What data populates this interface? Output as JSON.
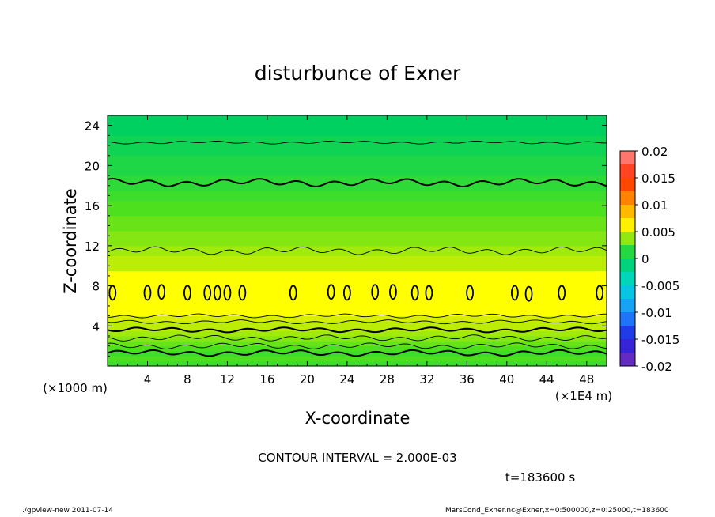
{
  "chart_data": {
    "type": "contour",
    "title": "disturbunce of Exner",
    "xlabel": "X-coordinate",
    "ylabel": "Z-coordinate",
    "x_unit_left": "(×1000 m)",
    "x_unit_right": "(×1E4 m)",
    "xlim": [
      0,
      50
    ],
    "ylim": [
      0,
      25
    ],
    "x_ticks": [
      4,
      8,
      12,
      16,
      20,
      24,
      28,
      32,
      36,
      40,
      44,
      48
    ],
    "y_ticks": [
      4,
      8,
      12,
      16,
      20,
      24
    ],
    "contour_interval_label": "CONTOUR INTERVAL = 2.000E-03",
    "time_label": "t=183600 s",
    "colorbar": {
      "ticks": [
        "0.02",
        "0.015",
        "0.01",
        "0.005",
        "0",
        "-0.005",
        "-0.01",
        "-0.015",
        "-0.02"
      ],
      "range": [
        -0.02,
        0.02
      ]
    },
    "bands": [
      {
        "z0": 0.0,
        "z1": 0.5,
        "value": 0.002
      },
      {
        "z0": 0.5,
        "z1": 1.0,
        "value": 0.0025
      },
      {
        "z0": 1.0,
        "z1": 1.5,
        "value": 0.002
      },
      {
        "z0": 1.5,
        "z1": 2.0,
        "value": 0.0025
      },
      {
        "z0": 2.0,
        "z1": 2.5,
        "value": 0.003
      },
      {
        "z0": 2.5,
        "z1": 3.0,
        "value": 0.0035
      },
      {
        "z0": 3.0,
        "z1": 3.5,
        "value": 0.004
      },
      {
        "z0": 3.5,
        "z1": 4.0,
        "value": 0.0045
      },
      {
        "z0": 4.0,
        "z1": 4.5,
        "value": 0.0045
      },
      {
        "z0": 4.5,
        "z1": 5.0,
        "value": 0.005
      },
      {
        "z0": 5.0,
        "z1": 9.5,
        "value": 0.0055
      },
      {
        "z0": 9.5,
        "z1": 11.0,
        "value": 0.0045
      },
      {
        "z0": 11.0,
        "z1": 12.0,
        "value": 0.004
      },
      {
        "z0": 12.0,
        "z1": 13.5,
        "value": 0.0035
      },
      {
        "z0": 13.5,
        "z1": 15.0,
        "value": 0.003
      },
      {
        "z0": 15.0,
        "z1": 16.5,
        "value": 0.0025
      },
      {
        "z0": 16.5,
        "z1": 17.5,
        "value": 0.002
      },
      {
        "z0": 17.5,
        "z1": 19.0,
        "value": 0.0015
      },
      {
        "z0": 19.0,
        "z1": 21.0,
        "value": 0.001
      },
      {
        "z0": 21.0,
        "z1": 23.0,
        "value": 0.0005
      },
      {
        "z0": 23.0,
        "z1": 25.0,
        "value": 0.0
      }
    ],
    "contour_lines": [
      {
        "z": 1.3,
        "level": 0.002,
        "weight": "thick",
        "wave": 0.3
      },
      {
        "z": 2.0,
        "level": 0.003,
        "weight": "thin",
        "wave": 0.3
      },
      {
        "z": 2.8,
        "level": 0.003,
        "weight": "thin",
        "wave": 0.3
      },
      {
        "z": 3.6,
        "level": 0.004,
        "weight": "thick",
        "wave": 0.25
      },
      {
        "z": 4.4,
        "level": 0.004,
        "weight": "thin",
        "wave": 0.2
      },
      {
        "z": 5.0,
        "level": 0.005,
        "weight": "thin",
        "wave": 0.2
      },
      {
        "z": 11.5,
        "level": 0.004,
        "weight": "thin",
        "wave": 0.4
      },
      {
        "z": 18.3,
        "level": 0.002,
        "weight": "thick",
        "wave": 0.4
      },
      {
        "z": 22.3,
        "level": 0.0,
        "weight": "thin",
        "wave": 0.15
      }
    ],
    "closed_contours": [
      {
        "x": 0.5,
        "z": 7.3
      },
      {
        "x": 4.0,
        "z": 7.3
      },
      {
        "x": 5.4,
        "z": 7.4
      },
      {
        "x": 8.0,
        "z": 7.3
      },
      {
        "x": 10.0,
        "z": 7.3
      },
      {
        "x": 11.0,
        "z": 7.3
      },
      {
        "x": 12.0,
        "z": 7.3
      },
      {
        "x": 13.5,
        "z": 7.3
      },
      {
        "x": 18.6,
        "z": 7.3
      },
      {
        "x": 22.4,
        "z": 7.4
      },
      {
        "x": 24.0,
        "z": 7.3
      },
      {
        "x": 26.8,
        "z": 7.4
      },
      {
        "x": 28.6,
        "z": 7.4
      },
      {
        "x": 30.8,
        "z": 7.3
      },
      {
        "x": 32.2,
        "z": 7.3
      },
      {
        "x": 36.3,
        "z": 7.3
      },
      {
        "x": 40.8,
        "z": 7.3
      },
      {
        "x": 42.2,
        "z": 7.2
      },
      {
        "x": 45.5,
        "z": 7.3
      },
      {
        "x": 49.3,
        "z": 7.3
      }
    ]
  },
  "footer": {
    "left": "./gpview-new  2011-07-14",
    "right": "MarsCond_Exner.nc@Exner,x=0:500000,z=0:25000,t=183600"
  }
}
